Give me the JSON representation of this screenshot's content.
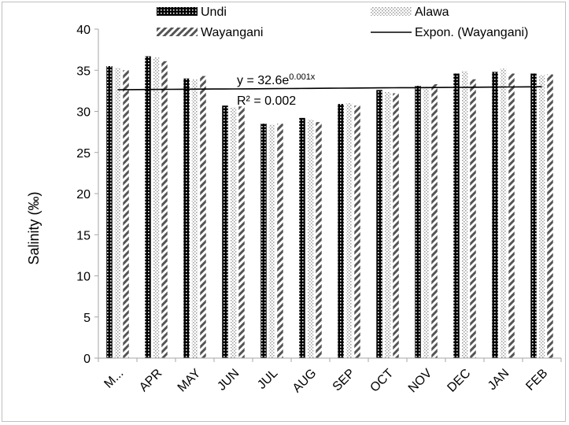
{
  "chart_data": {
    "type": "bar",
    "categories": [
      "M...",
      "APR",
      "MAY",
      "JUN",
      "JUL",
      "AUG",
      "SEP",
      "OCT",
      "NOV",
      "DEC",
      "JAN",
      "FEB"
    ],
    "series": [
      {
        "name": "Undi",
        "values": [
          35.5,
          36.7,
          34.0,
          30.7,
          28.5,
          29.2,
          30.9,
          32.6,
          33.1,
          34.6,
          34.8,
          34.6
        ]
      },
      {
        "name": "Alawa",
        "values": [
          35.3,
          36.6,
          33.9,
          30.5,
          28.4,
          29.0,
          31.0,
          32.4,
          33.0,
          34.9,
          35.2,
          34.4
        ]
      },
      {
        "name": "Wayangani",
        "values": [
          35.0,
          36.1,
          34.3,
          30.6,
          28.5,
          28.7,
          30.7,
          32.2,
          33.3,
          33.9,
          34.6,
          34.5
        ]
      }
    ],
    "trendline": {
      "name": "Expon. (Wayangani)",
      "a": 32.6,
      "b": 0.001
    },
    "annotations": {
      "equation_base": "y = 32.6e",
      "equation_exp": "0.001x",
      "r_squared": "R² = 0.002"
    },
    "xlabel": "",
    "ylabel": "Salinity (‰)",
    "ylim": [
      0,
      40
    ],
    "yticks": [
      0,
      5,
      10,
      15,
      20,
      25,
      30,
      35,
      40
    ],
    "legend_position": "top",
    "grid": false,
    "colors": {
      "undi": "#000000",
      "alawa": "#bdbdbd",
      "wayangani": "#555555",
      "trend": "#000000"
    }
  }
}
